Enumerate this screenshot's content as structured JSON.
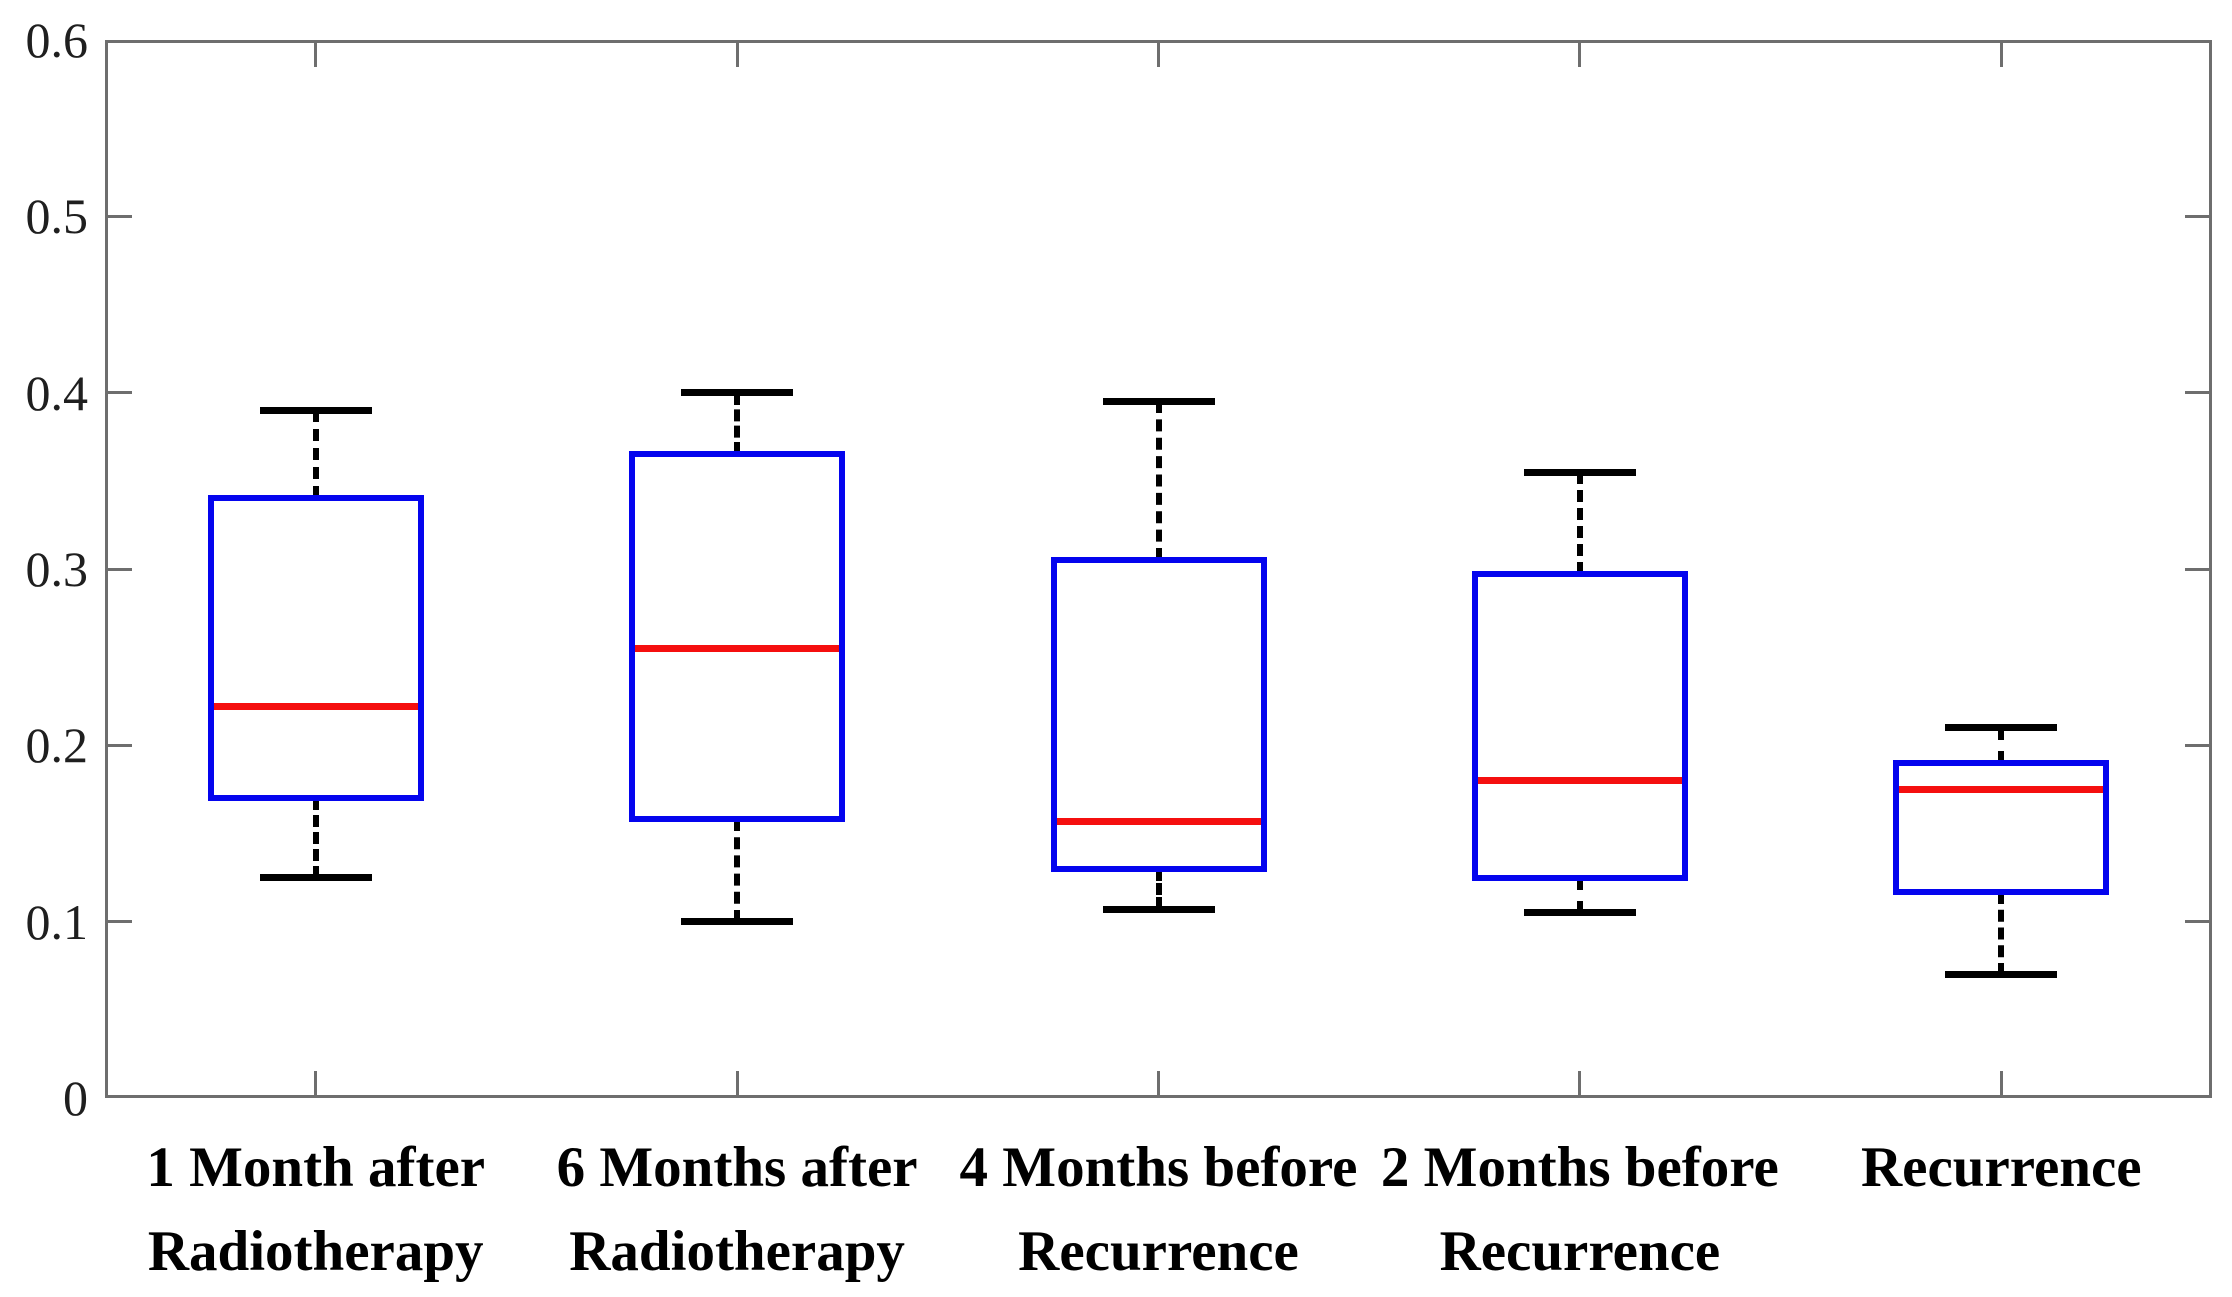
{
  "chart_data": {
    "type": "boxplot",
    "title": "",
    "xlabel": "",
    "ylabel": "",
    "grid": false,
    "legend": false,
    "y_axis": {
      "min": 0,
      "max": 0.6,
      "tick_step": 0.1,
      "tick_labels": [
        "0",
        "0.1",
        "0.2",
        "0.3",
        "0.4",
        "0.5",
        "0.6"
      ]
    },
    "categories": [
      "1 Month after Radiotherapy",
      "6 Months after Radiotherapy",
      "4 Months before Recurrence",
      "2 Months before Recurrence",
      "Recurrence"
    ],
    "series": [
      {
        "label_lines": [
          "1 Month after",
          "Radiotherapy"
        ],
        "whisker_low": 0.125,
        "q1": 0.17,
        "median": 0.222,
        "q3": 0.34,
        "whisker_high": 0.39
      },
      {
        "label_lines": [
          "6 Months after",
          "Radiotherapy"
        ],
        "whisker_low": 0.1,
        "q1": 0.158,
        "median": 0.255,
        "q3": 0.365,
        "whisker_high": 0.4
      },
      {
        "label_lines": [
          "4 Months before",
          "Recurrence"
        ],
        "whisker_low": 0.107,
        "q1": 0.13,
        "median": 0.157,
        "q3": 0.305,
        "whisker_high": 0.395
      },
      {
        "label_lines": [
          "2 Months before",
          "Recurrence"
        ],
        "whisker_low": 0.105,
        "q1": 0.125,
        "median": 0.18,
        "q3": 0.297,
        "whisker_high": 0.355
      },
      {
        "label_lines": [
          "Recurrence"
        ],
        "whisker_low": 0.07,
        "q1": 0.117,
        "median": 0.175,
        "q3": 0.19,
        "whisker_high": 0.21
      }
    ],
    "colors": {
      "box": "#0404ee",
      "median": "#f50f0f",
      "whisker": "#000000",
      "axis": "#6e6e6e",
      "tick_label": "#1f1f1f",
      "category_label": "#000000",
      "background": "#ffffff"
    }
  }
}
